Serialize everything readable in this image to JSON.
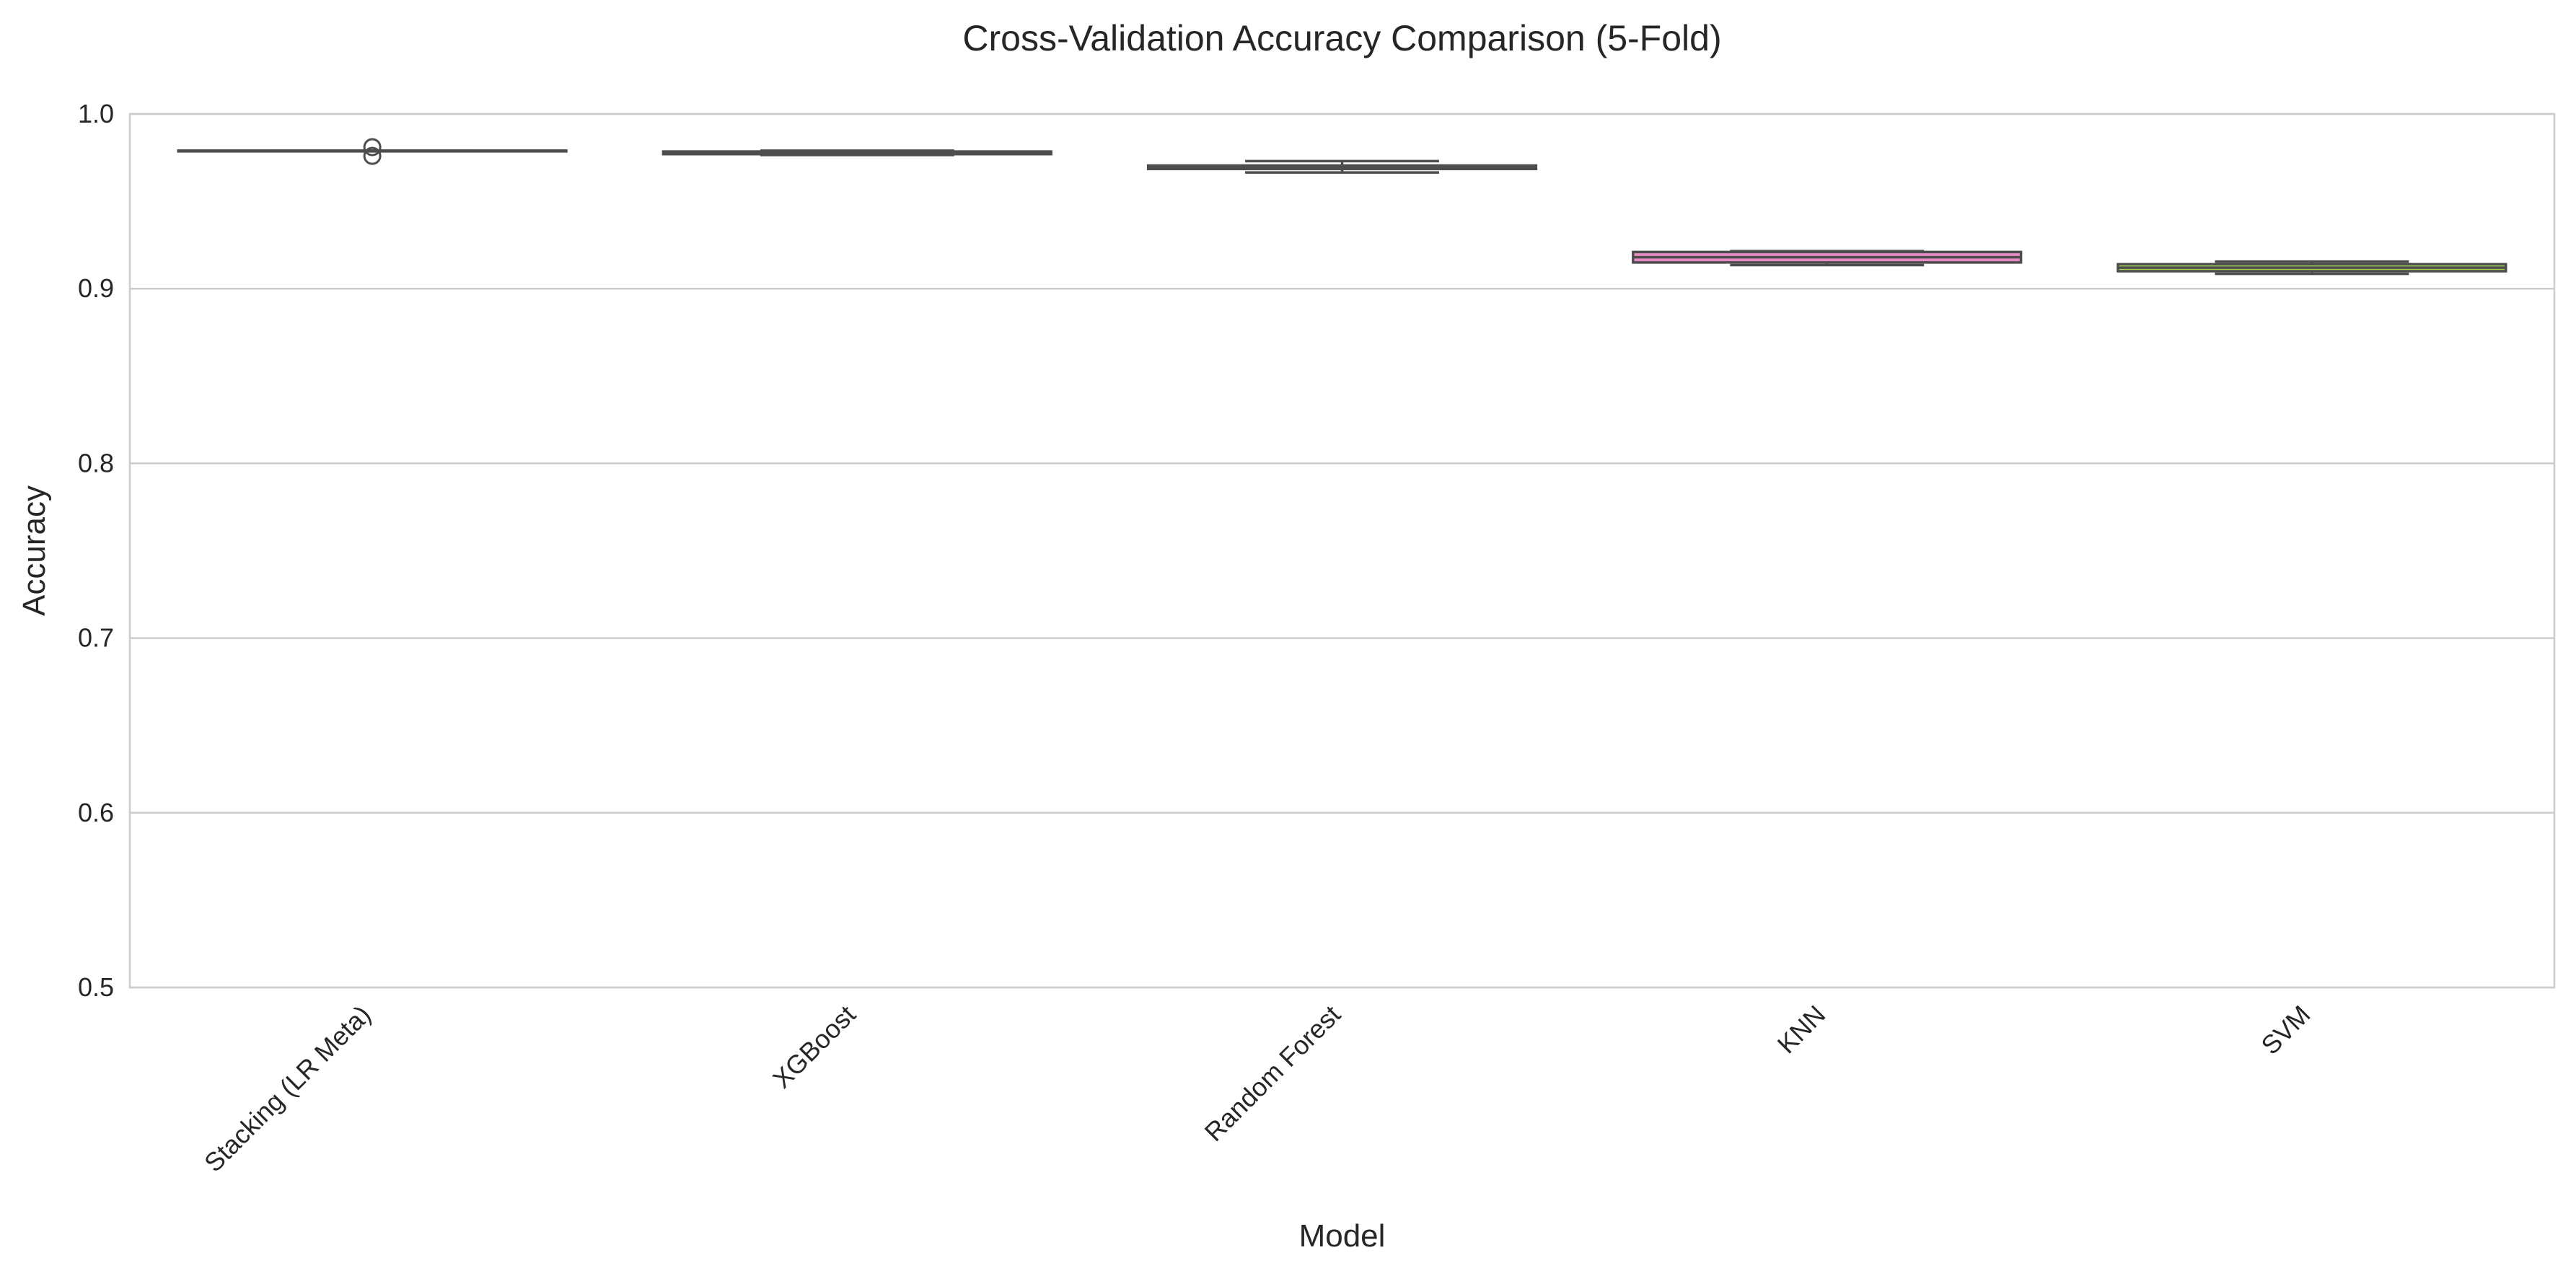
{
  "chart_data": {
    "type": "box",
    "title": "Cross-Validation Accuracy Comparison (5-Fold)",
    "xlabel": "Model",
    "ylabel": "Accuracy",
    "ylim": [
      0.5,
      1.0
    ],
    "yticks": [
      "0.5",
      "0.6",
      "0.7",
      "0.8",
      "0.9",
      "1.0"
    ],
    "grid": true,
    "categories": [
      "Stacking (LR Meta)",
      "XGBoost",
      "Random Forest",
      "KNN",
      "SVM"
    ],
    "boxes": [
      {
        "category": "Stacking (LR Meta)",
        "whisker_low": 0.979,
        "q1": 0.979,
        "median": 0.979,
        "q3": 0.979,
        "whisker_high": 0.979,
        "outliers": [
          0.976,
          0.981
        ],
        "color": "#66c2a5"
      },
      {
        "category": "XGBoost",
        "whisker_low": 0.9765,
        "q1": 0.977,
        "median": 0.978,
        "q3": 0.9785,
        "whisker_high": 0.979,
        "outliers": [],
        "color": "#fc8d62"
      },
      {
        "category": "Random Forest",
        "whisker_low": 0.9665,
        "q1": 0.9685,
        "median": 0.9695,
        "q3": 0.9705,
        "whisker_high": 0.973,
        "outliers": [],
        "color": "#8da0cb"
      },
      {
        "category": "KNN",
        "whisker_low": 0.9135,
        "q1": 0.915,
        "median": 0.918,
        "q3": 0.921,
        "whisker_high": 0.9215,
        "outliers": [],
        "color": "#e78ac3"
      },
      {
        "category": "SVM",
        "whisker_low": 0.9085,
        "q1": 0.91,
        "median": 0.912,
        "q3": 0.914,
        "whisker_high": 0.9155,
        "outliers": [],
        "color": "#a6d854"
      }
    ]
  }
}
